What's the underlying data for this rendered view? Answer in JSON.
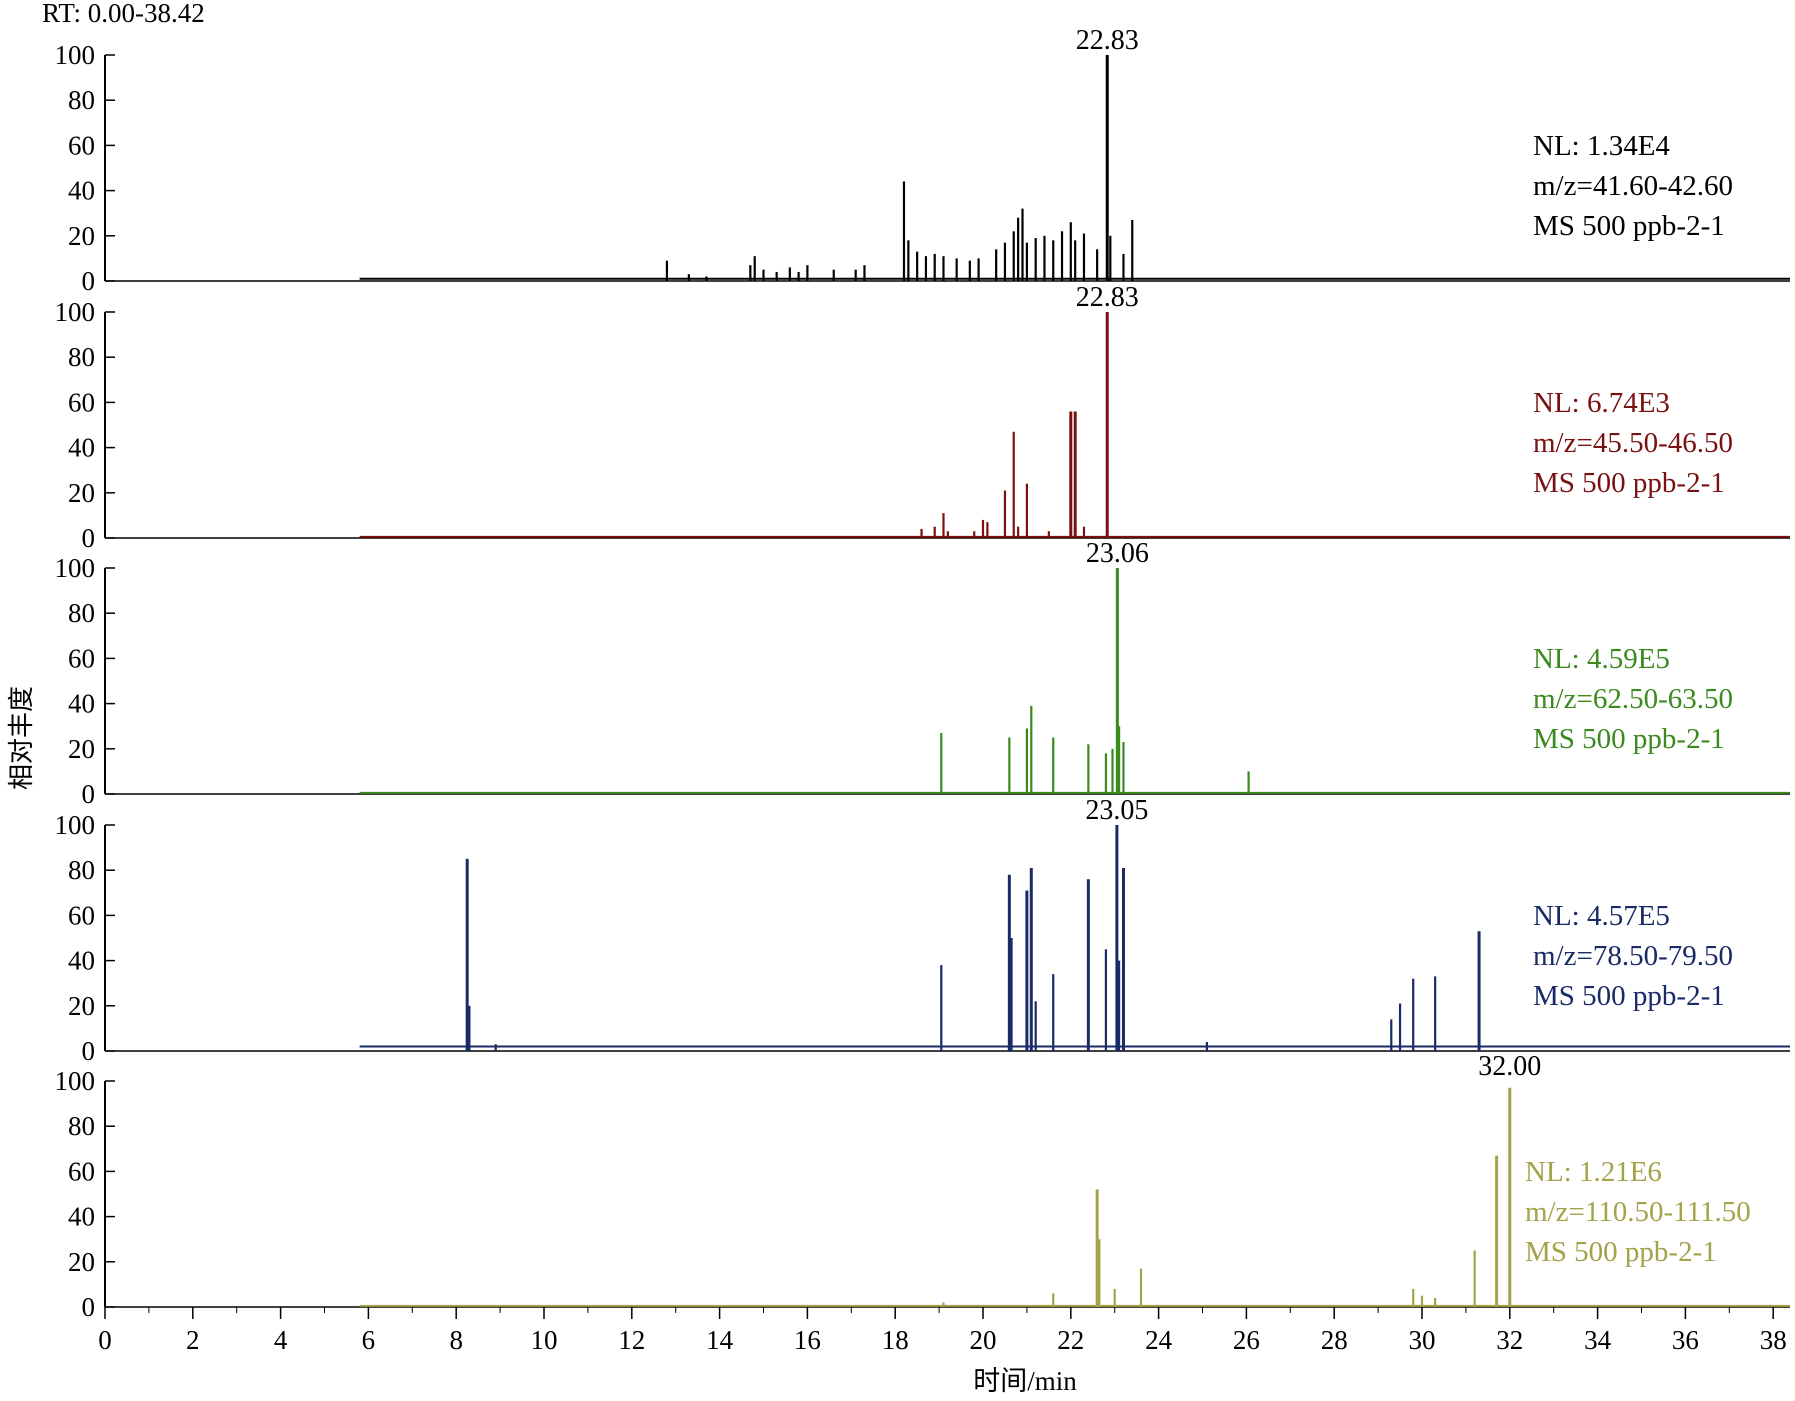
{
  "rt_range_label": "RT: 0.00-38.42",
  "ylabel": "相对丰度",
  "xlabel": "时间/min",
  "chart_data": {
    "type": "line",
    "x_range": [
      0,
      38.42
    ],
    "x_ticks": [
      "0",
      "2",
      "4",
      "6",
      "8",
      "10",
      "12",
      "14",
      "16",
      "18",
      "20",
      "22",
      "24",
      "26",
      "28",
      "30",
      "32",
      "34",
      "36",
      "38"
    ],
    "ylim": [
      0,
      100
    ],
    "y_ticks": [
      "0",
      "20",
      "40",
      "60",
      "80",
      "100"
    ],
    "panels": [
      {
        "color": "#000000",
        "peak_label": "22.83",
        "peak_rt": 22.83,
        "info": [
          "NL: 1.34E4",
          "m/z=41.60-42.60",
          "MS 500 ppb-2-1"
        ],
        "peaks": [
          [
            12.8,
            9
          ],
          [
            13.3,
            3
          ],
          [
            13.7,
            2
          ],
          [
            14.7,
            7
          ],
          [
            14.8,
            11
          ],
          [
            15.0,
            5
          ],
          [
            15.3,
            4
          ],
          [
            15.6,
            6
          ],
          [
            15.8,
            4
          ],
          [
            16.0,
            7
          ],
          [
            16.6,
            5
          ],
          [
            17.1,
            5
          ],
          [
            17.3,
            7
          ],
          [
            18.2,
            44
          ],
          [
            18.3,
            18
          ],
          [
            18.5,
            13
          ],
          [
            18.7,
            11
          ],
          [
            18.9,
            12
          ],
          [
            19.1,
            11
          ],
          [
            19.4,
            10
          ],
          [
            19.7,
            9
          ],
          [
            19.9,
            10
          ],
          [
            20.3,
            14
          ],
          [
            20.5,
            17
          ],
          [
            20.7,
            22
          ],
          [
            20.8,
            28
          ],
          [
            20.9,
            32
          ],
          [
            21.0,
            17
          ],
          [
            21.2,
            19
          ],
          [
            21.4,
            20
          ],
          [
            21.6,
            18
          ],
          [
            21.8,
            22
          ],
          [
            22.0,
            26
          ],
          [
            22.1,
            18
          ],
          [
            22.3,
            21
          ],
          [
            22.6,
            14
          ],
          [
            22.83,
            100
          ],
          [
            22.9,
            20
          ],
          [
            23.2,
            12
          ],
          [
            23.4,
            27
          ]
        ],
        "baseline": 1
      },
      {
        "color": "#7a1111",
        "peak_label": "22.83",
        "peak_rt": 22.83,
        "info": [
          "NL: 6.74E3",
          "m/z=45.50-46.50",
          "MS 500 ppb-2-1"
        ],
        "peaks": [
          [
            18.6,
            4
          ],
          [
            18.9,
            5
          ],
          [
            19.1,
            11
          ],
          [
            19.2,
            3
          ],
          [
            19.8,
            3
          ],
          [
            20.0,
            8
          ],
          [
            20.1,
            7
          ],
          [
            20.5,
            21
          ],
          [
            20.7,
            47
          ],
          [
            20.8,
            5
          ],
          [
            21.0,
            24
          ],
          [
            21.5,
            3
          ],
          [
            22.0,
            56
          ],
          [
            22.1,
            56
          ],
          [
            22.3,
            5
          ],
          [
            22.83,
            100
          ]
        ],
        "baseline": 0.5
      },
      {
        "color": "#3a8a1e",
        "peak_label": "23.06",
        "peak_rt": 23.06,
        "info": [
          "NL: 4.59E5",
          "m/z=62.50-63.50",
          "MS 500 ppb-2-1"
        ],
        "peaks": [
          [
            19.05,
            27
          ],
          [
            20.6,
            25
          ],
          [
            21.0,
            29
          ],
          [
            21.1,
            39
          ],
          [
            21.6,
            25
          ],
          [
            22.4,
            22
          ],
          [
            22.8,
            18
          ],
          [
            22.95,
            20
          ],
          [
            23.06,
            100
          ],
          [
            23.1,
            30
          ],
          [
            23.2,
            23
          ],
          [
            26.05,
            10
          ]
        ],
        "baseline": 0.5
      },
      {
        "color": "#1a2a66",
        "peak_label": "23.05",
        "peak_rt": 23.05,
        "info": [
          "NL: 4.57E5",
          "m/z=78.50-79.50",
          "MS 500 ppb-2-1"
        ],
        "peaks": [
          [
            8.25,
            85
          ],
          [
            8.3,
            20
          ],
          [
            8.9,
            3
          ],
          [
            19.05,
            38
          ],
          [
            20.6,
            78
          ],
          [
            20.65,
            50
          ],
          [
            21.0,
            71
          ],
          [
            21.1,
            81
          ],
          [
            21.2,
            22
          ],
          [
            21.6,
            34
          ],
          [
            22.4,
            76
          ],
          [
            22.8,
            45
          ],
          [
            23.05,
            100
          ],
          [
            23.1,
            40
          ],
          [
            23.2,
            81
          ],
          [
            25.1,
            4
          ],
          [
            29.3,
            14
          ],
          [
            29.5,
            21
          ],
          [
            29.8,
            32
          ],
          [
            30.3,
            33
          ],
          [
            31.3,
            53
          ]
        ],
        "baseline": 2
      },
      {
        "color": "#a3a34a",
        "peak_label": "32.00",
        "peak_rt": 32.0,
        "info": [
          "NL: 1.21E6",
          "m/z=110.50-111.50",
          "MS 500 ppb-2-1"
        ],
        "peaks": [
          [
            19.1,
            2
          ],
          [
            21.6,
            6
          ],
          [
            22.6,
            52
          ],
          [
            22.65,
            30
          ],
          [
            23.0,
            8
          ],
          [
            23.6,
            17
          ],
          [
            29.8,
            8
          ],
          [
            30.0,
            5
          ],
          [
            30.3,
            4
          ],
          [
            31.2,
            25
          ],
          [
            31.7,
            67
          ],
          [
            32.0,
            97
          ]
        ],
        "baseline": 0.5
      }
    ]
  }
}
